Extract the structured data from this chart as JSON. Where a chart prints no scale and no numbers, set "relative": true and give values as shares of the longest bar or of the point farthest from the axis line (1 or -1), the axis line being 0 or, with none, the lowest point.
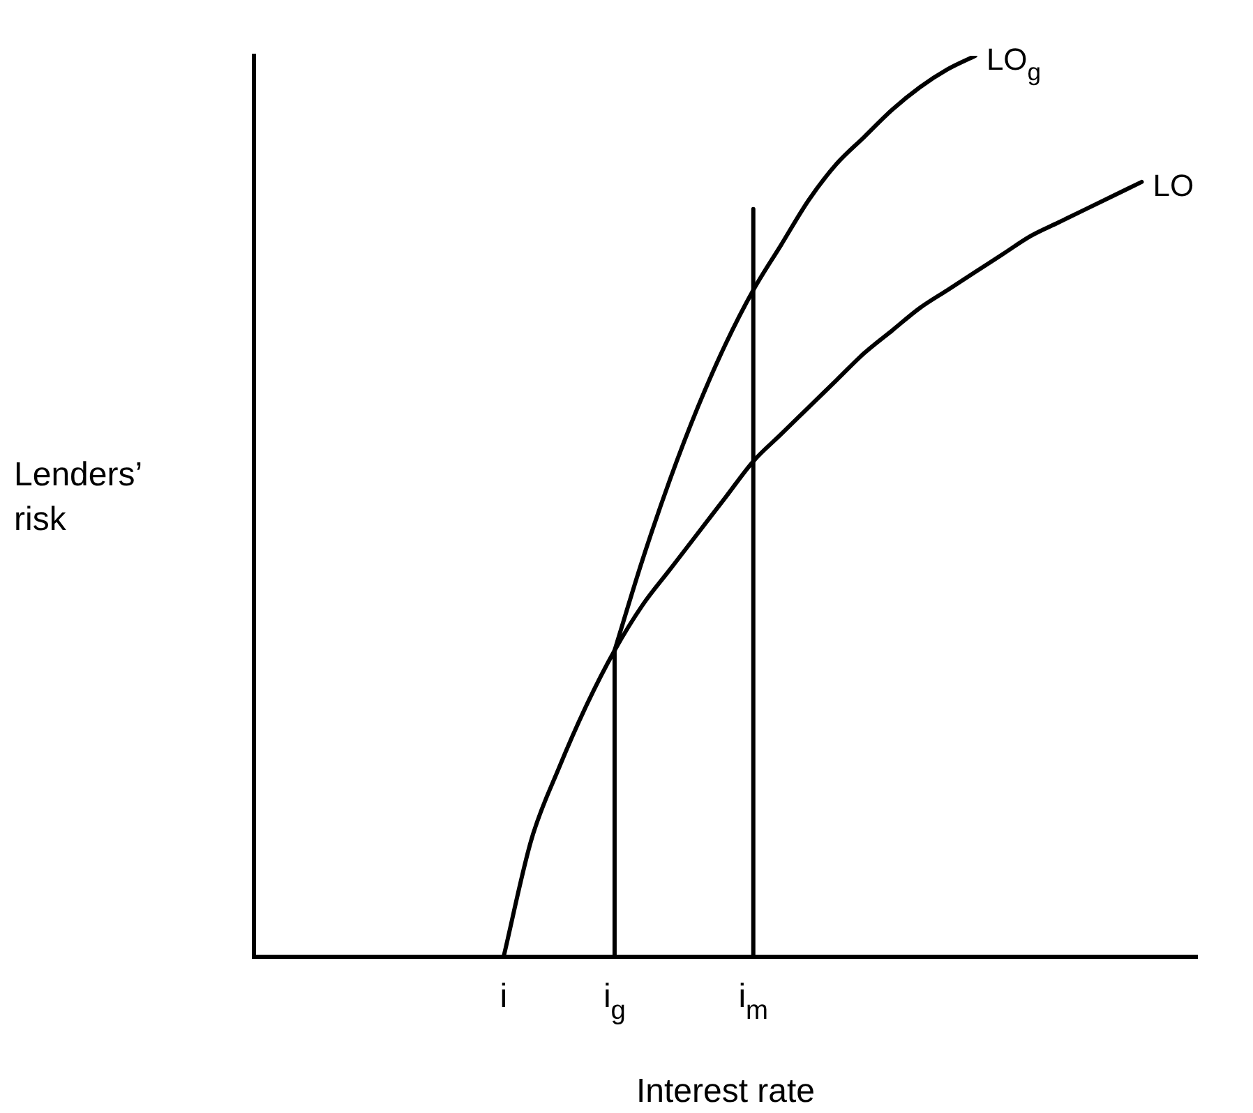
{
  "chart_data": {
    "type": "line",
    "relative": true,
    "xlabel": "Interest rate",
    "ylabel": "Lenders’ risk",
    "grid": false,
    "legend": false,
    "marker": "none",
    "line_style": "solid",
    "categories": [
      null,
      null,
      null,
      null,
      null,
      null,
      null,
      null,
      null,
      "i",
      null,
      null,
      null,
      "i$_{g}$",
      null,
      null,
      null,
      null,
      "i$_{m}$",
      null,
      null,
      null,
      null,
      null,
      null,
      null,
      null,
      null,
      null,
      null,
      null,
      null,
      null,
      null,
      null
    ],
    "series": [
      {
        "name": "LO$_{g}$",
        "color": "#000000",
        "values": [
          null,
          null,
          null,
          null,
          null,
          null,
          null,
          null,
          null,
          null,
          null,
          null,
          null,
          0.34,
          0.44,
          0.53,
          0.61,
          0.68,
          0.74,
          0.79,
          0.84,
          0.88,
          0.91,
          0.94,
          0.965,
          0.985,
          1,
          null,
          null,
          null,
          null,
          null,
          null,
          null,
          null
        ]
      },
      {
        "name": "LO",
        "color": "#000000",
        "values": [
          null,
          null,
          null,
          null,
          null,
          null,
          null,
          null,
          null,
          0,
          0.13,
          0.21,
          0.28,
          0.34,
          0.39,
          0.43,
          0.47,
          0.51,
          0.55,
          0.58,
          0.61,
          0.64,
          0.67,
          0.695,
          0.72,
          0.74,
          0.76,
          0.78,
          0.8,
          0.815,
          0.83,
          0.845,
          0.86,
          null,
          null
        ]
      },
      {
        "color": "#000000",
        "x": [
          "i$_{g}$",
          "i$_{g}$"
        ],
        "values": [
          0,
          0.34
        ]
      },
      {
        "color": "#000000",
        "x": [
          "i$_{m}$",
          "i$_{m}$"
        ],
        "values": [
          0,
          0.83
        ]
      }
    ]
  }
}
